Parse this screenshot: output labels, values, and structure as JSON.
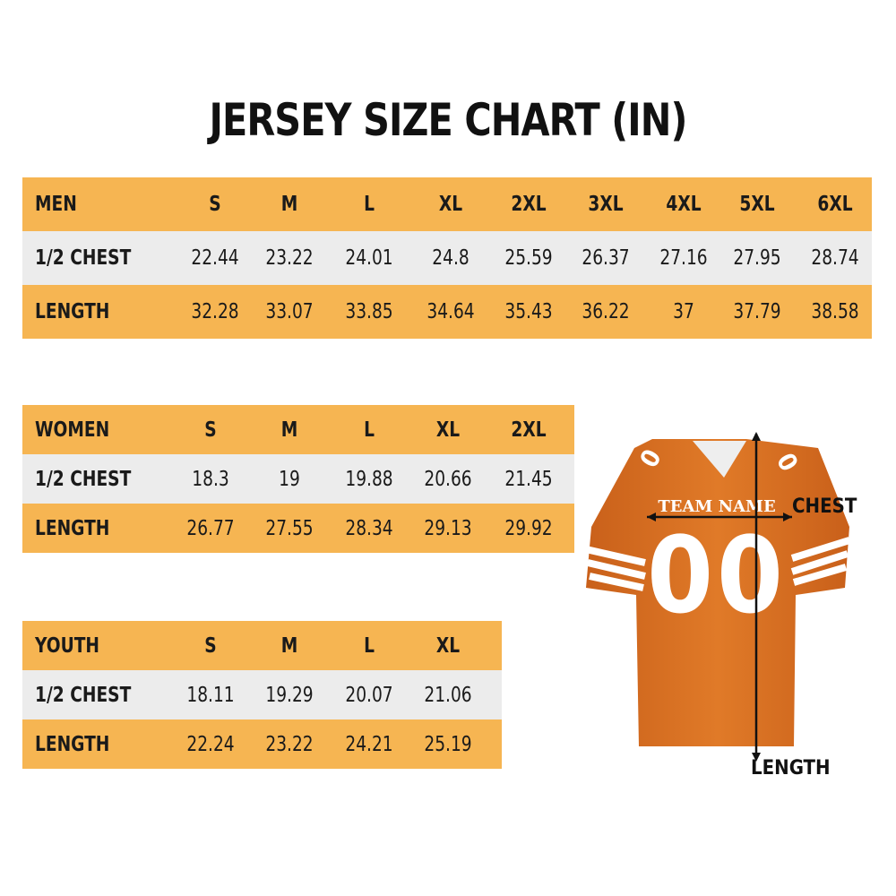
{
  "title": "JERSEY SIZE CHART (IN)",
  "colors": {
    "header_row": "#f6b552",
    "alt_row": "#ececec",
    "jersey": "#d9701f"
  },
  "tables": [
    {
      "group": "MEN",
      "sizes": [
        "S",
        "M",
        "L",
        "XL",
        "2XL",
        "3XL",
        "4XL",
        "5XL",
        "6XL"
      ],
      "rows": [
        {
          "label": "1/2 CHEST",
          "values": [
            "22.44",
            "23.22",
            "24.01",
            "24.8",
            "25.59",
            "26.37",
            "27.16",
            "27.95",
            "28.74"
          ]
        },
        {
          "label": "LENGTH",
          "values": [
            "32.28",
            "33.07",
            "33.85",
            "34.64",
            "35.43",
            "36.22",
            "37",
            "37.79",
            "38.58"
          ]
        }
      ]
    },
    {
      "group": "WOMEN",
      "sizes": [
        "S",
        "M",
        "L",
        "XL",
        "2XL"
      ],
      "rows": [
        {
          "label": "1/2 CHEST",
          "values": [
            "18.3",
            "19",
            "19.88",
            "20.66",
            "21.45"
          ]
        },
        {
          "label": "LENGTH",
          "values": [
            "26.77",
            "27.55",
            "28.34",
            "29.13",
            "29.92"
          ]
        }
      ]
    },
    {
      "group": "YOUTH",
      "sizes": [
        "S",
        "M",
        "L",
        "XL"
      ],
      "rows": [
        {
          "label": "1/2 CHEST",
          "values": [
            "18.11",
            "19.29",
            "20.07",
            "21.06"
          ]
        },
        {
          "label": "LENGTH",
          "values": [
            "22.24",
            "23.22",
            "24.21",
            "25.19"
          ]
        }
      ]
    }
  ],
  "jersey": {
    "team_name": "TEAM NAME",
    "number": "00",
    "chest_label": "CHEST",
    "length_label": "LENGTH"
  }
}
